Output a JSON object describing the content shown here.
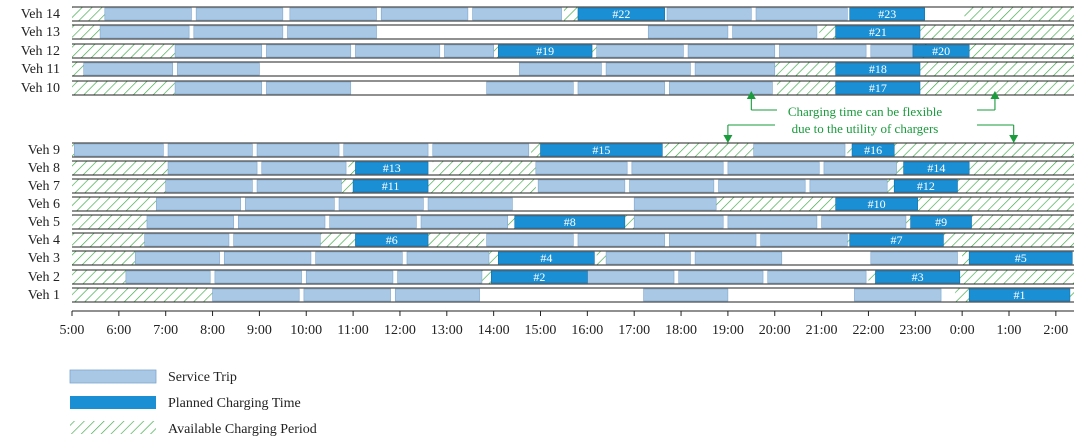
{
  "chart_data": {
    "type": "gantt",
    "x_ticks": [
      "5:00",
      "6:00",
      "7:00",
      "8:00",
      "9:00",
      "10:00",
      "11:00",
      "12:00",
      "13:00",
      "14:00",
      "15:00",
      "16:00",
      "17:00",
      "18:00",
      "19:00",
      "20:00",
      "21:00",
      "22:00",
      "23:00",
      "0:00",
      "1:00",
      "2:00"
    ],
    "xlim_hours": [
      5,
      26.5
    ],
    "colors": {
      "service": "#a8c8e6",
      "service_stroke": "#7fa6cc",
      "charging": "#1b8fd4",
      "available": "#3aa845",
      "annotation": "#1a9b3c"
    },
    "annotation": {
      "line1": "Charging time can be flexible",
      "line2": "due to the utility of chargers"
    },
    "legend": {
      "service": "Service Trip",
      "charging": "Planned Charging Time",
      "available": "Available Charging Period"
    },
    "vehicles": [
      {
        "label": "Veh 14",
        "id": 14,
        "available": [
          [
            5.0,
            5.7
          ],
          [
            15.5,
            15.8
          ],
          [
            24.05,
            26.5
          ]
        ],
        "service": [
          [
            5.7,
            7.55
          ],
          [
            7.65,
            9.5
          ],
          [
            9.65,
            11.5
          ],
          [
            11.6,
            13.45
          ],
          [
            13.55,
            15.45
          ],
          [
            17.7,
            19.5
          ],
          [
            19.6,
            21.55
          ]
        ],
        "charging": [
          {
            "s": 15.8,
            "e": 17.65,
            "n": "#22"
          },
          {
            "s": 21.6,
            "e": 23.2,
            "n": "#23"
          }
        ]
      },
      {
        "label": "Veh 13",
        "id": 13,
        "available": [
          [
            5.0,
            5.6
          ],
          [
            20.95,
            21.3
          ],
          [
            23.1,
            26.5
          ]
        ],
        "service": [
          [
            5.6,
            7.5
          ],
          [
            7.6,
            9.5
          ],
          [
            9.6,
            11.5
          ],
          [
            17.3,
            19.0
          ],
          [
            19.1,
            20.9
          ]
        ],
        "charging": [
          {
            "s": 21.3,
            "e": 23.1,
            "n": "#21"
          }
        ]
      },
      {
        "label": "Veh 12",
        "id": 12,
        "available": [
          [
            5.0,
            7.2
          ],
          [
            14.0,
            14.1
          ],
          [
            16.1,
            16.2
          ],
          [
            23.0,
            23.3
          ],
          [
            24.15,
            26.5
          ]
        ],
        "service": [
          [
            7.2,
            9.05
          ],
          [
            9.15,
            10.95
          ],
          [
            11.05,
            12.85
          ],
          [
            12.95,
            14.0
          ],
          [
            16.2,
            18.05
          ],
          [
            18.15,
            20.0
          ],
          [
            20.1,
            21.95
          ],
          [
            22.05,
            22.95
          ]
        ],
        "charging": [
          {
            "s": 14.1,
            "e": 16.1,
            "n": "#19"
          },
          {
            "s": 22.95,
            "e": 24.15,
            "n": "#20"
          }
        ]
      },
      {
        "label": "Veh 11",
        "id": 11,
        "available": [
          [
            5.0,
            5.25
          ],
          [
            19.9,
            21.3
          ],
          [
            23.1,
            26.5
          ]
        ],
        "service": [
          [
            5.25,
            7.15
          ],
          [
            7.25,
            9.0
          ],
          [
            14.55,
            16.3
          ],
          [
            16.4,
            18.2
          ],
          [
            18.3,
            20.0
          ]
        ],
        "charging": [
          {
            "s": 21.3,
            "e": 23.1,
            "n": "#18"
          }
        ]
      },
      {
        "label": "Veh 10",
        "id": 10,
        "available": [
          [
            5.0,
            7.2
          ],
          [
            20.05,
            21.3
          ],
          [
            23.1,
            26.5
          ]
        ],
        "service": [
          [
            7.2,
            9.05
          ],
          [
            9.15,
            10.95
          ],
          [
            13.85,
            15.7
          ],
          [
            15.8,
            17.65
          ],
          [
            17.75,
            19.95
          ]
        ],
        "charging": [
          {
            "s": 21.3,
            "e": 23.1,
            "n": "#17"
          }
        ]
      },
      {
        "label": "Veh 9",
        "id": 9,
        "available": [
          [
            5.0,
            5.05
          ],
          [
            14.8,
            15.0
          ],
          [
            17.65,
            19.55
          ],
          [
            21.55,
            21.65
          ],
          [
            22.55,
            26.5
          ]
        ],
        "service": [
          [
            5.05,
            6.95
          ],
          [
            7.05,
            8.85
          ],
          [
            8.95,
            10.7
          ],
          [
            10.8,
            12.6
          ],
          [
            12.7,
            14.75
          ],
          [
            19.55,
            21.5
          ]
        ],
        "charging": [
          {
            "s": 15.0,
            "e": 17.6,
            "n": "#15"
          },
          {
            "s": 21.65,
            "e": 22.55,
            "n": "#16"
          }
        ]
      },
      {
        "label": "Veh 8",
        "id": 8,
        "available": [
          [
            5.0,
            7.05
          ],
          [
            10.9,
            11.05
          ],
          [
            12.7,
            14.9
          ],
          [
            22.55,
            22.75
          ],
          [
            24.15,
            26.5
          ]
        ],
        "service": [
          [
            7.05,
            8.95
          ],
          [
            9.05,
            10.85
          ],
          [
            14.9,
            16.85
          ],
          [
            16.95,
            18.9
          ],
          [
            19.0,
            20.95
          ],
          [
            21.05,
            22.6
          ]
        ],
        "charging": [
          {
            "s": 11.05,
            "e": 12.6,
            "n": "#13"
          },
          {
            "s": 22.75,
            "e": 24.15,
            "n": "#14"
          }
        ]
      },
      {
        "label": "Veh 7",
        "id": 7,
        "available": [
          [
            5.0,
            7.0
          ],
          [
            10.75,
            11.0
          ],
          [
            12.6,
            14.9
          ],
          [
            22.4,
            22.55
          ],
          [
            23.9,
            26.5
          ]
        ],
        "service": [
          [
            7.0,
            8.85
          ],
          [
            8.95,
            10.75
          ],
          [
            14.95,
            16.8
          ],
          [
            16.9,
            18.7
          ],
          [
            18.8,
            20.65
          ],
          [
            20.75,
            22.4
          ]
        ],
        "charging": [
          {
            "s": 11.0,
            "e": 12.6,
            "n": "#11"
          },
          {
            "s": 22.55,
            "e": 23.9,
            "n": "#12"
          }
        ]
      },
      {
        "label": "Veh 6",
        "id": 6,
        "available": [
          [
            5.0,
            6.8
          ],
          [
            18.75,
            21.3
          ],
          [
            23.05,
            26.5
          ]
        ],
        "service": [
          [
            6.8,
            8.6
          ],
          [
            8.7,
            10.6
          ],
          [
            10.7,
            12.5
          ],
          [
            12.6,
            14.4
          ],
          [
            17.0,
            18.75
          ]
        ],
        "charging": [
          {
            "s": 21.3,
            "e": 23.05,
            "n": "#10"
          }
        ]
      },
      {
        "label": "Veh 5",
        "id": 5,
        "available": [
          [
            5.0,
            6.6
          ],
          [
            14.3,
            14.45
          ],
          [
            16.8,
            17.0
          ],
          [
            22.8,
            22.9
          ],
          [
            24.2,
            26.5
          ]
        ],
        "service": [
          [
            6.6,
            8.45
          ],
          [
            8.55,
            10.4
          ],
          [
            10.5,
            12.35
          ],
          [
            12.45,
            14.3
          ],
          [
            17.0,
            18.9
          ],
          [
            19.0,
            20.9
          ],
          [
            21.0,
            22.8
          ]
        ],
        "charging": [
          {
            "s": 14.45,
            "e": 16.8,
            "n": "#8"
          },
          {
            "s": 22.9,
            "e": 24.2,
            "n": "#9"
          }
        ]
      },
      {
        "label": "Veh 4",
        "id": 4,
        "available": [
          [
            5.0,
            6.55
          ],
          [
            10.3,
            11.05
          ],
          [
            12.6,
            13.8
          ],
          [
            21.55,
            21.6
          ],
          [
            23.6,
            26.5
          ]
        ],
        "service": [
          [
            6.55,
            8.35
          ],
          [
            8.45,
            10.3
          ],
          [
            13.85,
            15.7
          ],
          [
            15.8,
            17.65
          ],
          [
            17.75,
            19.6
          ],
          [
            19.7,
            21.55
          ]
        ],
        "charging": [
          {
            "s": 11.05,
            "e": 12.6,
            "n": "#6"
          },
          {
            "s": 21.6,
            "e": 23.6,
            "n": "#7"
          }
        ]
      },
      {
        "label": "Veh 3",
        "id": 3,
        "available": [
          [
            5.0,
            6.35
          ],
          [
            13.9,
            14.1
          ],
          [
            16.2,
            16.4
          ],
          [
            24.0,
            24.15
          ]
        ],
        "service": [
          [
            6.35,
            8.15
          ],
          [
            8.25,
            10.1
          ],
          [
            10.2,
            12.05
          ],
          [
            12.15,
            13.9
          ],
          [
            16.4,
            18.2
          ],
          [
            18.3,
            20.15
          ],
          [
            22.05,
            23.9
          ]
        ],
        "charging": [
          {
            "s": 14.1,
            "e": 16.15,
            "n": "#4"
          },
          {
            "s": 24.15,
            "e": 26.35,
            "n": "#5"
          }
        ]
      },
      {
        "label": "Veh 2",
        "id": 2,
        "available": [
          [
            5.0,
            6.15
          ],
          [
            13.7,
            13.95
          ],
          [
            22.0,
            22.15
          ],
          [
            23.95,
            26.5
          ]
        ],
        "service": [
          [
            6.15,
            7.95
          ],
          [
            8.05,
            9.9
          ],
          [
            10.0,
            11.85
          ],
          [
            11.95,
            13.75
          ],
          [
            16.0,
            17.85
          ],
          [
            17.95,
            19.75
          ],
          [
            19.85,
            21.95
          ]
        ],
        "charging": [
          {
            "s": 13.95,
            "e": 16.0,
            "n": "#2"
          },
          {
            "s": 22.15,
            "e": 23.95,
            "n": "#3"
          }
        ]
      },
      {
        "label": "Veh 1",
        "id": 1,
        "available": [
          [
            5.0,
            8.0
          ],
          [
            23.85,
            24.15
          ],
          [
            26.3,
            26.5
          ]
        ],
        "service": [
          [
            8.0,
            9.85
          ],
          [
            9.95,
            11.8
          ],
          [
            11.9,
            13.7
          ],
          [
            17.2,
            19.0
          ],
          [
            21.7,
            23.55
          ]
        ],
        "charging": [
          {
            "s": 24.15,
            "e": 26.3,
            "n": "#1"
          }
        ]
      }
    ]
  }
}
